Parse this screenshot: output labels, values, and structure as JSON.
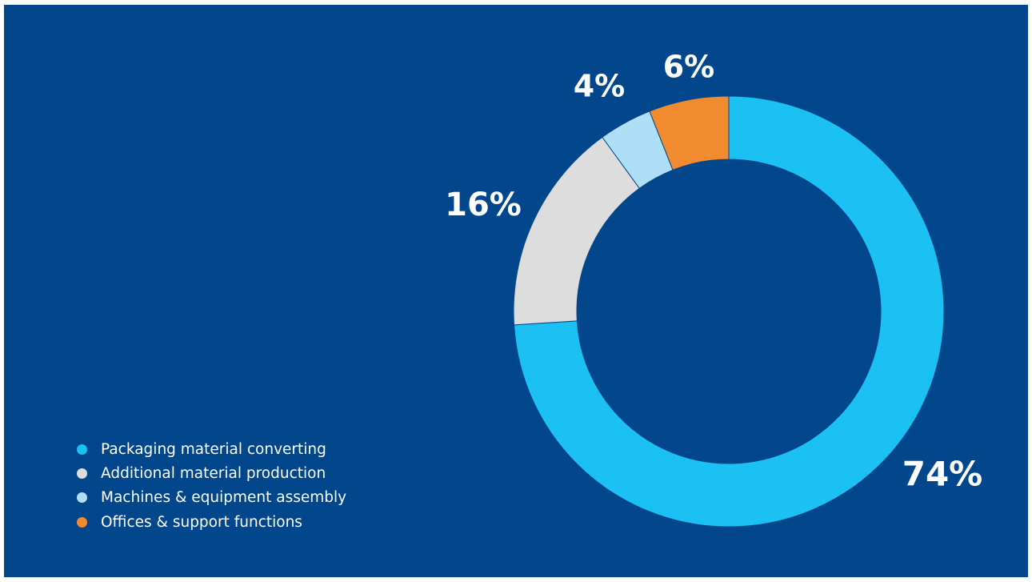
{
  "chart_data": {
    "type": "pie",
    "variant": "donut",
    "categories": [
      "Packaging material converting",
      "Additional material production",
      "Machines & equipment assembly",
      "Offices & support functions"
    ],
    "values": [
      74,
      16,
      4,
      6
    ],
    "value_labels": [
      "74%",
      "16%",
      "4%",
      "6%"
    ],
    "unit": "%",
    "colors": [
      "#1bc1f2",
      "#dddddd",
      "#aedff7",
      "#f28a30"
    ],
    "background": "#02478c",
    "legend_position": "bottom-left",
    "legend": [
      {
        "label": "Packaging material converting",
        "color": "#1bc1f2"
      },
      {
        "label": "Additional material production",
        "color": "#dddddd"
      },
      {
        "label": "Machines & equipment assembly",
        "color": "#aedff7"
      },
      {
        "label": "Offices & support functions",
        "color": "#f28a30"
      }
    ]
  }
}
